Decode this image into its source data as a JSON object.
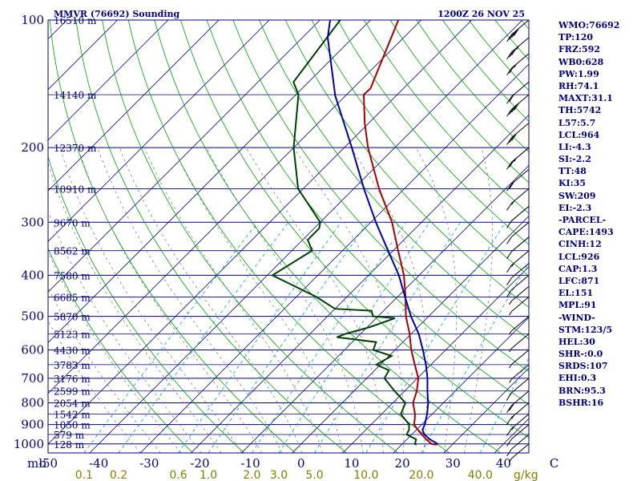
{
  "header": {
    "station": "MMVR (76692) Sounding",
    "time": "1200Z 26 NOV 25"
  },
  "chart_data": {
    "type": "skew-t",
    "pressure_labels": [
      "100",
      "200",
      "300",
      "400",
      "500",
      "600",
      "700",
      "800",
      "900",
      "1000"
    ],
    "pressure_unit": "mb",
    "temperature_ticks": [
      "-50",
      "-40",
      "-30",
      "-20",
      "-10",
      "0",
      "10",
      "20",
      "30",
      "40",
      "C"
    ],
    "mixing_ratio_ticks": [
      "0.1",
      "0.2",
      "0.6",
      "1.0",
      "2.0",
      "3.0",
      "5.0",
      "10.0",
      "20.0",
      "40.0"
    ],
    "mixing_ratio_unit": "g/kg",
    "heights": [
      {
        "p": 100,
        "label": "16510 m"
      },
      {
        "p": 150,
        "label": "14140 m"
      },
      {
        "p": 200,
        "label": "12370 m"
      },
      {
        "p": 250,
        "label": "10910 m"
      },
      {
        "p": 300,
        "label": "9670 m"
      },
      {
        "p": 350,
        "label": "8562 m"
      },
      {
        "p": 400,
        "label": "7580 m"
      },
      {
        "p": 450,
        "label": "6685 m"
      },
      {
        "p": 500,
        "label": "5870 m"
      },
      {
        "p": 550,
        "label": "5123 m"
      },
      {
        "p": 600,
        "label": "4430 m"
      },
      {
        "p": 650,
        "label": "3783 m"
      },
      {
        "p": 700,
        "label": "3176 m"
      },
      {
        "p": 750,
        "label": "2599 m"
      },
      {
        "p": 800,
        "label": "2054 m"
      },
      {
        "p": 850,
        "label": "1542 m"
      },
      {
        "p": 900,
        "label": "1050 m"
      },
      {
        "p": 950,
        "label": "579 m"
      },
      {
        "p": 1000,
        "label": "128 m"
      }
    ],
    "series": [
      {
        "kind": "temperature",
        "color": "#aa0000",
        "points": [
          [
            1004,
            27
          ],
          [
            1000,
            25.8
          ],
          [
            975,
            23.8
          ],
          [
            950,
            22
          ],
          [
            925,
            20.2
          ],
          [
            900,
            18.5
          ],
          [
            875,
            17.6
          ],
          [
            850,
            16.6
          ],
          [
            800,
            14
          ],
          [
            750,
            12.4
          ],
          [
            700,
            10.2
          ],
          [
            650,
            6.8
          ],
          [
            600,
            3.2
          ],
          [
            550,
            -0.3
          ],
          [
            500,
            -4.5
          ],
          [
            450,
            -8.4
          ],
          [
            400,
            -13
          ],
          [
            350,
            -19
          ],
          [
            300,
            -25.8
          ],
          [
            250,
            -35
          ],
          [
            200,
            -45.3
          ],
          [
            175,
            -50.8
          ],
          [
            150,
            -56.6
          ],
          [
            145,
            -56.5
          ],
          [
            100,
            -64.5
          ],
          [
            85,
            -60
          ]
        ]
      },
      {
        "kind": "dewpoint",
        "color": "#004000",
        "points": [
          [
            1004,
            23
          ],
          [
            1000,
            22.5
          ],
          [
            975,
            21.8
          ],
          [
            950,
            19
          ],
          [
            925,
            18.5
          ],
          [
            900,
            17.5
          ],
          [
            850,
            13.8
          ],
          [
            800,
            12.5
          ],
          [
            750,
            8
          ],
          [
            700,
            3.5
          ],
          [
            670,
            2.8
          ],
          [
            650,
            -0.8
          ],
          [
            620,
            0.5
          ],
          [
            600,
            -4.3
          ],
          [
            575,
            -5.3
          ],
          [
            560,
            -14
          ],
          [
            550,
            -13
          ],
          [
            530,
            -9.5
          ],
          [
            505,
            -6.3
          ],
          [
            500,
            -11
          ],
          [
            485,
            -12.4
          ],
          [
            480,
            -20
          ],
          [
            450,
            -26
          ],
          [
            400,
            -39
          ],
          [
            350,
            -36
          ],
          [
            330,
            -39
          ],
          [
            310,
            -39
          ],
          [
            300,
            -40
          ],
          [
            250,
            -51
          ],
          [
            200,
            -60
          ],
          [
            150,
            -69.5
          ],
          [
            140,
            -73
          ],
          [
            100,
            -76
          ],
          [
            85,
            -75
          ]
        ]
      },
      {
        "kind": "parcel",
        "color": "#0000aa",
        "points": [
          [
            1000,
            27
          ],
          [
            975,
            24.5
          ],
          [
            950,
            22.5
          ],
          [
            926,
            21.2
          ],
          [
            900,
            20.6
          ],
          [
            850,
            19
          ],
          [
            800,
            17
          ],
          [
            750,
            14.5
          ],
          [
            700,
            12
          ],
          [
            650,
            9
          ],
          [
            600,
            5.5
          ],
          [
            550,
            1.5
          ],
          [
            500,
            -3.5
          ],
          [
            450,
            -8.5
          ],
          [
            400,
            -14
          ],
          [
            350,
            -21
          ],
          [
            300,
            -29
          ],
          [
            250,
            -38
          ],
          [
            200,
            -48.5
          ],
          [
            151,
            -62
          ],
          [
            110,
            -75
          ],
          [
            100,
            -78
          ]
        ]
      }
    ],
    "wind_barbs": [
      {
        "p": 100,
        "speed": 40
      },
      {
        "p": 110,
        "speed": 35
      },
      {
        "p": 120,
        "speed": 25
      },
      {
        "p": 140,
        "speed": 20
      },
      {
        "p": 150,
        "speed": 40
      },
      {
        "p": 175,
        "speed": 30
      },
      {
        "p": 200,
        "speed": 25
      },
      {
        "p": 225,
        "speed": 20
      },
      {
        "p": 250,
        "speed": 15
      },
      {
        "p": 275,
        "speed": 10
      },
      {
        "p": 300,
        "speed": 10
      },
      {
        "p": 325,
        "speed": 10
      },
      {
        "p": 350,
        "speed": 15
      },
      {
        "p": 375,
        "speed": 10
      },
      {
        "p": 400,
        "speed": 10
      },
      {
        "p": 425,
        "speed": 5
      },
      {
        "p": 450,
        "speed": 5
      },
      {
        "p": 500,
        "speed": 5
      },
      {
        "p": 550,
        "speed": 5
      },
      {
        "p": 600,
        "speed": 5
      },
      {
        "p": 650,
        "speed": 5
      },
      {
        "p": 700,
        "speed": 10
      },
      {
        "p": 750,
        "speed": 20
      },
      {
        "p": 800,
        "speed": 15
      },
      {
        "p": 850,
        "speed": 15
      },
      {
        "p": 900,
        "speed": 10
      },
      {
        "p": 950,
        "speed": 10
      },
      {
        "p": 1000,
        "speed": 5
      }
    ],
    "x_range_temp_at_1000": [
      -50,
      45
    ],
    "y_range_pressure": [
      100,
      1050
    ],
    "log_pressure": true,
    "grid": true
  },
  "sidebar": {
    "items": [
      "WMO:76692",
      "TP:120",
      "FRZ:592",
      "WB0:628",
      "PW:1.99",
      "RH:74.1",
      "MAXT:31.1",
      "TH:5742",
      "L57:5.7",
      "LCL:964",
      "LI:-4.3",
      "SI:-2.2",
      "TT:48",
      "KI:35",
      "SW:209",
      "EI:-2.3",
      "-PARCEL-",
      "CAPE:1493",
      "CINH:12",
      "LCL:926",
      "CAP:1.3",
      "LFC:871",
      "EL:151",
      "MPL:91",
      "-WIND-",
      "STM:123/5",
      "HEL:30",
      "SHR-:0.0",
      "SRDS:107",
      "EHI:0.3",
      "BRN:95.3",
      "BSHR:16"
    ]
  }
}
